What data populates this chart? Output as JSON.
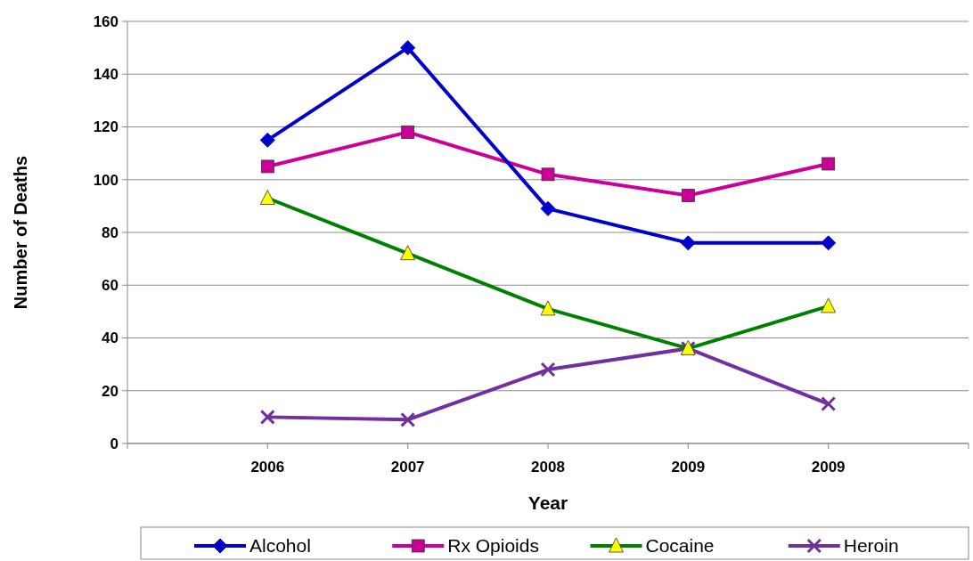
{
  "chart_data": {
    "type": "line",
    "xlabel": "Year",
    "ylabel": "Number of Deaths",
    "categories": [
      "2006",
      "2007",
      "2008",
      "2009",
      "2009"
    ],
    "series": [
      {
        "name": "Alcohol",
        "color": "#0000cc",
        "marker": "diamond",
        "values": [
          115,
          150,
          89,
          76,
          76
        ]
      },
      {
        "name": "Rx Opioids",
        "color": "#cc0099",
        "marker": "square",
        "values": [
          105,
          118,
          102,
          94,
          106
        ]
      },
      {
        "name": "Cocaine",
        "color": "#008000",
        "marker": "triangle",
        "values": [
          93,
          72,
          51,
          36,
          52
        ]
      },
      {
        "name": "Heroin",
        "color": "#7030a0",
        "marker": "cross",
        "values": [
          10,
          9,
          28,
          36,
          15
        ]
      }
    ],
    "ylim": [
      0,
      160
    ],
    "yticks": [
      0,
      20,
      40,
      60,
      80,
      100,
      120,
      140,
      160
    ],
    "grid": "y",
    "legend": "bottom",
    "line_style": "solid"
  }
}
